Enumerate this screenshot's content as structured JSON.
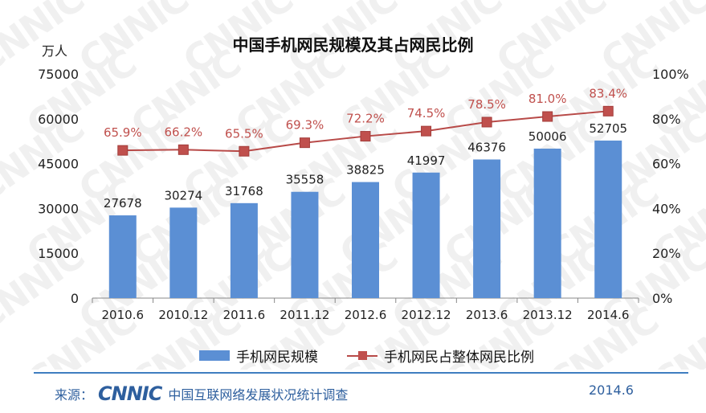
{
  "title": "中国手机网民规模及其占网民比例",
  "unit_label": "万人",
  "chart_data": {
    "type": "bar",
    "title": "中国手机网民规模及其占网民比例",
    "categories": [
      "2010.6",
      "2010.12",
      "2011.6",
      "2011.12",
      "2012.6",
      "2012.12",
      "2013.6",
      "2013.12",
      "2014.6"
    ],
    "series": [
      {
        "name": "手机网民规模",
        "type": "bar",
        "axis": "left",
        "values": [
          27678,
          30274,
          31768,
          35558,
          38825,
          41997,
          46376,
          50006,
          52705
        ],
        "labels": [
          "27678",
          "30274",
          "31768",
          "35558",
          "38825",
          "41997",
          "46376",
          "50006",
          "52705"
        ],
        "color": "#5b8fd4"
      },
      {
        "name": "手机网民占整体网民比例",
        "type": "line",
        "axis": "right",
        "values": [
          65.9,
          66.2,
          65.5,
          69.3,
          72.2,
          74.5,
          78.5,
          81.0,
          83.4
        ],
        "labels": [
          "65.9%",
          "66.2%",
          "65.5%",
          "69.3%",
          "72.2%",
          "74.5%",
          "78.5%",
          "81.0%",
          "83.4%"
        ],
        "color": "#c0504d"
      }
    ],
    "y_left": {
      "ylim": [
        0,
        75000
      ],
      "ticks": [
        "0",
        "15000",
        "30000",
        "45000",
        "60000",
        "75000"
      ],
      "tick_values": [
        0,
        15000,
        30000,
        45000,
        60000,
        75000
      ]
    },
    "y_right": {
      "ylim": [
        0,
        100
      ],
      "ticks": [
        "0%",
        "20%",
        "40%",
        "60%",
        "80%",
        "100%"
      ],
      "tick_values": [
        0,
        20,
        40,
        60,
        80,
        100
      ]
    },
    "grid": false,
    "legend_position": "bottom"
  },
  "legend": {
    "bar_label": "手机网民规模",
    "line_label": "手机网民占整体网民比例"
  },
  "footer": {
    "source_label": "来源：",
    "logo_text": "CNNIC",
    "source_name": "中国互联网络发展状况统计调查",
    "date": "2014.6"
  },
  "watermark": {
    "text": "CNNIC"
  },
  "colors": {
    "bar": "#5b8fd4",
    "line": "#c0504d",
    "value_label": "#c0504d",
    "footer_accent": "#2e5f9e"
  }
}
